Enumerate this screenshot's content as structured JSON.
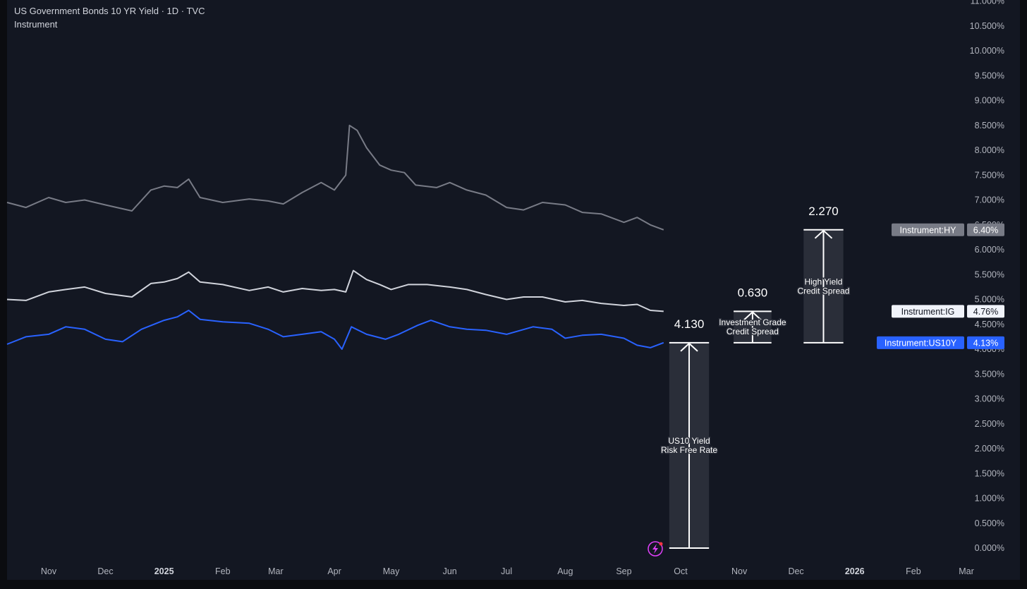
{
  "header": {
    "title": "US Government Bonds 10 YR Yield · 1D · TVC",
    "subtitle": "Instrument"
  },
  "colors": {
    "background": "#131722",
    "us10y": "#2962ff",
    "ig": "#d1d4dc",
    "hy": "#787b86",
    "axis_text": "#b2b5be",
    "bar_fill": "#2a2e39"
  },
  "chart_data": {
    "type": "line",
    "title": "US Government Bonds 10 YR Yield · 1D · TVC",
    "xlabel": "",
    "ylabel": "",
    "ylim": [
      0,
      11
    ],
    "y_tick_labels": [
      "0.000%",
      "0.500%",
      "1.000%",
      "1.500%",
      "2.000%",
      "2.500%",
      "3.000%",
      "3.500%",
      "4.000%",
      "4.500%",
      "5.000%",
      "5.500%",
      "6.000%",
      "6.500%",
      "7.000%",
      "7.500%",
      "8.000%",
      "8.500%",
      "9.000%",
      "9.500%",
      "10.000%",
      "10.500%",
      "11.000%"
    ],
    "x_tick_labels": [
      "Nov",
      "Dec",
      "2025",
      "Feb",
      "Mar",
      "Apr",
      "May",
      "Jun",
      "Jul",
      "Aug",
      "Sep",
      "Oct",
      "Nov",
      "Dec",
      "2026",
      "Feb",
      "Mar"
    ],
    "x_tick_dates": [
      "2024-11-01",
      "2024-12-01",
      "2025-01-01",
      "2025-02-01",
      "2025-03-01",
      "2025-04-01",
      "2025-05-01",
      "2025-06-01",
      "2025-07-01",
      "2025-08-01",
      "2025-09-01",
      "2025-10-01",
      "2025-11-01",
      "2025-12-01",
      "2026-01-01",
      "2026-02-01",
      "2026-03-01"
    ],
    "x_range": [
      "2024-10-10",
      "2026-03-01"
    ],
    "grid": false,
    "series": [
      {
        "key": "hy",
        "name": "Instrument:HY",
        "last_value_label": "6.40%",
        "color": "#787b86",
        "points": [
          [
            "2024-10-10",
            6.95
          ],
          [
            "2024-10-20",
            6.85
          ],
          [
            "2024-11-01",
            7.05
          ],
          [
            "2024-11-10",
            6.95
          ],
          [
            "2024-11-20",
            7.0
          ],
          [
            "2024-12-01",
            6.9
          ],
          [
            "2024-12-15",
            6.78
          ],
          [
            "2024-12-25",
            7.2
          ],
          [
            "2025-01-01",
            7.28
          ],
          [
            "2025-01-08",
            7.25
          ],
          [
            "2025-01-14",
            7.42
          ],
          [
            "2025-01-20",
            7.05
          ],
          [
            "2025-02-01",
            6.95
          ],
          [
            "2025-02-15",
            7.02
          ],
          [
            "2025-02-25",
            6.98
          ],
          [
            "2025-03-05",
            6.92
          ],
          [
            "2025-03-15",
            7.15
          ],
          [
            "2025-03-25",
            7.35
          ],
          [
            "2025-04-01",
            7.2
          ],
          [
            "2025-04-07",
            7.5
          ],
          [
            "2025-04-09",
            8.5
          ],
          [
            "2025-04-13",
            8.4
          ],
          [
            "2025-04-18",
            8.05
          ],
          [
            "2025-04-25",
            7.7
          ],
          [
            "2025-05-01",
            7.6
          ],
          [
            "2025-05-08",
            7.55
          ],
          [
            "2025-05-14",
            7.3
          ],
          [
            "2025-05-25",
            7.25
          ],
          [
            "2025-06-01",
            7.35
          ],
          [
            "2025-06-10",
            7.2
          ],
          [
            "2025-06-20",
            7.1
          ],
          [
            "2025-07-01",
            6.85
          ],
          [
            "2025-07-10",
            6.8
          ],
          [
            "2025-07-20",
            6.95
          ],
          [
            "2025-08-01",
            6.9
          ],
          [
            "2025-08-10",
            6.75
          ],
          [
            "2025-08-20",
            6.72
          ],
          [
            "2025-09-01",
            6.55
          ],
          [
            "2025-09-08",
            6.65
          ],
          [
            "2025-09-15",
            6.5
          ],
          [
            "2025-09-22",
            6.4
          ]
        ]
      },
      {
        "key": "ig",
        "name": "Instrument:IG",
        "last_value_label": "4.76%",
        "color": "#d1d4dc",
        "points": [
          [
            "2024-10-10",
            5.0
          ],
          [
            "2024-10-20",
            4.98
          ],
          [
            "2024-11-01",
            5.15
          ],
          [
            "2024-11-10",
            5.2
          ],
          [
            "2024-11-20",
            5.25
          ],
          [
            "2024-12-01",
            5.12
          ],
          [
            "2024-12-15",
            5.05
          ],
          [
            "2024-12-25",
            5.32
          ],
          [
            "2025-01-01",
            5.35
          ],
          [
            "2025-01-08",
            5.42
          ],
          [
            "2025-01-14",
            5.55
          ],
          [
            "2025-01-20",
            5.35
          ],
          [
            "2025-02-01",
            5.3
          ],
          [
            "2025-02-15",
            5.18
          ],
          [
            "2025-02-25",
            5.25
          ],
          [
            "2025-03-05",
            5.15
          ],
          [
            "2025-03-15",
            5.22
          ],
          [
            "2025-03-25",
            5.18
          ],
          [
            "2025-04-01",
            5.2
          ],
          [
            "2025-04-07",
            5.15
          ],
          [
            "2025-04-11",
            5.58
          ],
          [
            "2025-04-18",
            5.4
          ],
          [
            "2025-04-25",
            5.3
          ],
          [
            "2025-05-01",
            5.2
          ],
          [
            "2025-05-10",
            5.3
          ],
          [
            "2025-05-20",
            5.3
          ],
          [
            "2025-06-01",
            5.25
          ],
          [
            "2025-06-10",
            5.2
          ],
          [
            "2025-06-20",
            5.1
          ],
          [
            "2025-07-01",
            5.0
          ],
          [
            "2025-07-10",
            5.05
          ],
          [
            "2025-07-20",
            5.05
          ],
          [
            "2025-08-01",
            4.95
          ],
          [
            "2025-08-10",
            4.98
          ],
          [
            "2025-08-20",
            4.92
          ],
          [
            "2025-09-01",
            4.88
          ],
          [
            "2025-09-08",
            4.9
          ],
          [
            "2025-09-15",
            4.78
          ],
          [
            "2025-09-22",
            4.76
          ]
        ]
      },
      {
        "key": "us10y",
        "name": "Instrument:US10Y",
        "last_value_label": "4.13%",
        "color": "#2962ff",
        "points": [
          [
            "2024-10-10",
            4.1
          ],
          [
            "2024-10-20",
            4.25
          ],
          [
            "2024-11-01",
            4.3
          ],
          [
            "2024-11-10",
            4.45
          ],
          [
            "2024-11-20",
            4.4
          ],
          [
            "2024-12-01",
            4.2
          ],
          [
            "2024-12-10",
            4.15
          ],
          [
            "2024-12-20",
            4.4
          ],
          [
            "2025-01-01",
            4.58
          ],
          [
            "2025-01-08",
            4.65
          ],
          [
            "2025-01-14",
            4.78
          ],
          [
            "2025-01-20",
            4.6
          ],
          [
            "2025-02-01",
            4.55
          ],
          [
            "2025-02-15",
            4.52
          ],
          [
            "2025-02-25",
            4.4
          ],
          [
            "2025-03-05",
            4.25
          ],
          [
            "2025-03-15",
            4.3
          ],
          [
            "2025-03-25",
            4.35
          ],
          [
            "2025-04-01",
            4.2
          ],
          [
            "2025-04-05",
            4.0
          ],
          [
            "2025-04-10",
            4.45
          ],
          [
            "2025-04-18",
            4.3
          ],
          [
            "2025-04-28",
            4.2
          ],
          [
            "2025-05-05",
            4.3
          ],
          [
            "2025-05-15",
            4.48
          ],
          [
            "2025-05-22",
            4.58
          ],
          [
            "2025-06-01",
            4.45
          ],
          [
            "2025-06-10",
            4.4
          ],
          [
            "2025-06-20",
            4.38
          ],
          [
            "2025-07-01",
            4.3
          ],
          [
            "2025-07-15",
            4.45
          ],
          [
            "2025-07-25",
            4.4
          ],
          [
            "2025-08-01",
            4.22
          ],
          [
            "2025-08-10",
            4.28
          ],
          [
            "2025-08-20",
            4.3
          ],
          [
            "2025-09-01",
            4.22
          ],
          [
            "2025-09-08",
            4.08
          ],
          [
            "2025-09-15",
            4.03
          ],
          [
            "2025-09-22",
            4.13
          ]
        ]
      }
    ],
    "bars": [
      {
        "label_top": "4.130",
        "caption": [
          "US10 Yield",
          "Risk Free Rate"
        ],
        "from": 0,
        "to": 4.13,
        "x_start": "2025-09-25",
        "x_end": "2025-10-16"
      },
      {
        "label_top": "0.630",
        "caption": [
          "Investment Grade",
          "Credit Spread"
        ],
        "from": 4.13,
        "to": 4.76,
        "x_start": "2025-10-29",
        "x_end": "2025-11-18"
      },
      {
        "label_top": "2.270",
        "caption": [
          "High Yield",
          "Credit Spread"
        ],
        "from": 4.13,
        "to": 6.4,
        "x_start": "2025-12-05",
        "x_end": "2025-12-26"
      }
    ]
  }
}
